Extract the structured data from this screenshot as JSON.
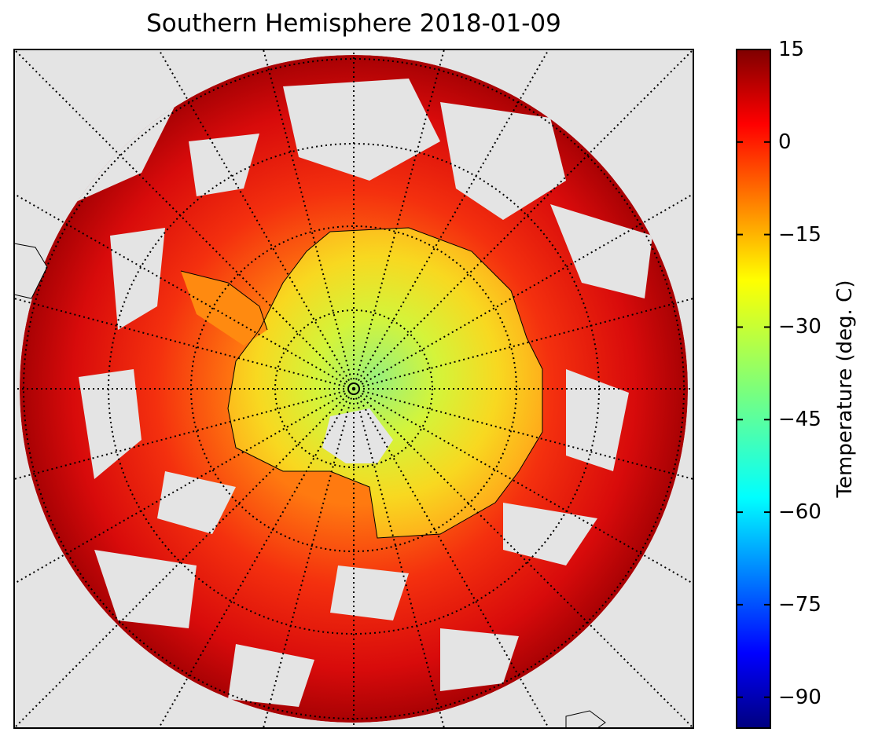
{
  "title": "Southern Hemisphere 2018-01-09",
  "colorbar": {
    "label": "Temperature (deg. C)",
    "ticks": [
      "15",
      "0",
      "−15",
      "−30",
      "−45",
      "−60",
      "−75",
      "−90"
    ],
    "tick_values": [
      15,
      0,
      -15,
      -30,
      -45,
      -60,
      -75,
      -90
    ],
    "range": [
      -95,
      15
    ],
    "colormap": "jet"
  },
  "chart_data": {
    "type": "heatmap",
    "projection": "south polar stereographic",
    "title": "Southern Hemisphere 2018-01-09",
    "variable_label": "Temperature (deg. C)",
    "value_range": [
      -95,
      15
    ],
    "colors": {
      "background": "#e4e4e4",
      "warm_ocean": "#c8070a",
      "antarctic_interior": "#c6f23c",
      "coast_line": "#000000"
    }
  }
}
